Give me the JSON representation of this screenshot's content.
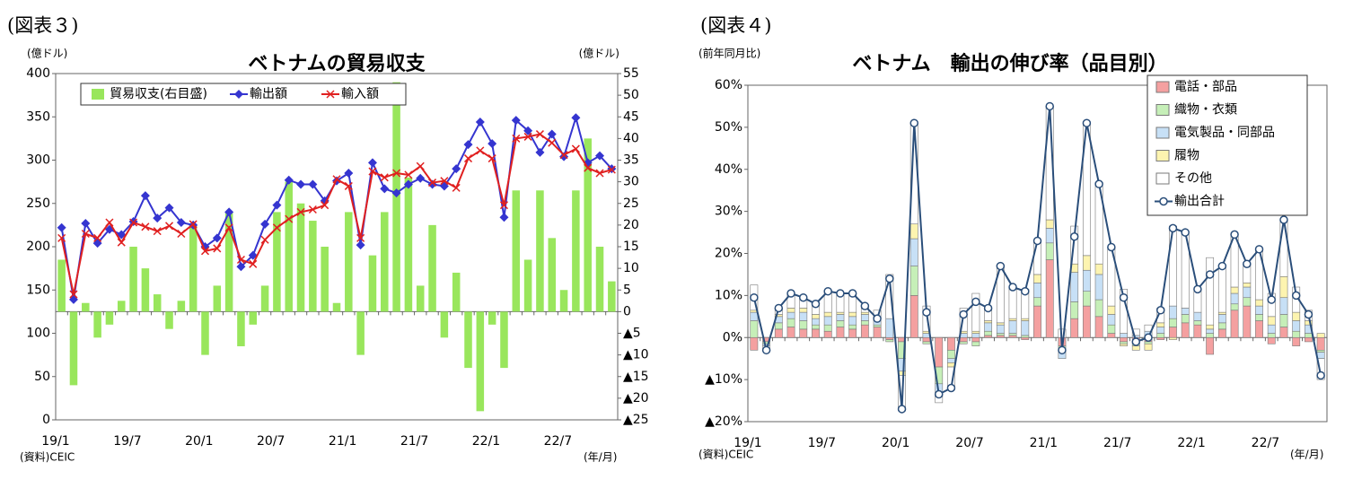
{
  "chart_data": [
    {
      "type": "combo",
      "figure_label": "(図表３)",
      "title": "ベトナムの貿易収支",
      "y_label": "(億ドル)",
      "y2_label": "(億ドル)",
      "source": "(資料)CEIC",
      "x_label": "(年/月)",
      "legend": "top-left",
      "grid": false,
      "categories": [
        "19/1",
        null,
        null,
        null,
        null,
        null,
        "19/7",
        null,
        null,
        null,
        null,
        null,
        "20/1",
        null,
        null,
        null,
        null,
        null,
        "20/7",
        null,
        null,
        null,
        null,
        null,
        "21/1",
        null,
        null,
        null,
        null,
        null,
        "21/7",
        null,
        null,
        null,
        null,
        null,
        "22/1",
        null,
        null,
        null,
        null,
        null,
        "22/7",
        null,
        null,
        null,
        null
      ],
      "ylim": [
        0,
        400
      ],
      "yticks": [
        0,
        50,
        100,
        150,
        200,
        250,
        300,
        350,
        400
      ],
      "y2lim": [
        -25,
        55
      ],
      "y2ticks": [
        {
          "value": -25,
          "label": "▲25"
        },
        {
          "value": -20,
          "label": "▲20"
        },
        {
          "value": -15,
          "label": "▲15"
        },
        {
          "value": -10,
          "label": "▲10"
        },
        {
          "value": -5,
          "label": "▲5"
        },
        0,
        5,
        10,
        15,
        20,
        25,
        30,
        35,
        40,
        45,
        50,
        55
      ],
      "series": [
        {
          "name": "貿易収支(右目盛)",
          "kind": "bar",
          "axis": "y2",
          "color": "#99e65c",
          "values": [
            12,
            -17,
            2,
            -6,
            -3,
            2.5,
            15,
            10,
            4,
            -4,
            2.5,
            20,
            -10,
            6,
            23,
            -8,
            -3,
            6,
            23,
            30,
            25,
            21,
            15,
            2,
            23,
            -10,
            13,
            23,
            53,
            31,
            6,
            20,
            -6,
            9,
            -13,
            -23,
            -3,
            -13,
            28,
            12,
            28,
            17,
            5,
            28,
            40,
            15,
            7
          ]
        },
        {
          "name": "輸出額",
          "kind": "line",
          "marker": "diamond",
          "color": "#3535d0",
          "values": [
            222,
            139,
            227,
            204,
            220,
            214,
            229,
            259,
            233,
            245,
            228,
            225,
            200,
            210,
            240,
            177,
            190,
            226,
            248,
            277,
            272,
            272,
            253,
            276,
            285,
            202,
            297,
            267,
            262,
            272,
            279,
            272,
            270,
            290,
            318,
            344,
            319,
            234,
            346,
            334,
            309,
            330,
            304,
            349,
            297,
            305,
            290
          ]
        },
        {
          "name": "輸入額",
          "kind": "line",
          "marker": "x",
          "color": "#e02020",
          "values": [
            210,
            145,
            215,
            210,
            228,
            205,
            228,
            223,
            218,
            224,
            215,
            226,
            195,
            198,
            222,
            185,
            180,
            208,
            222,
            232,
            240,
            243,
            248,
            278,
            270,
            210,
            287,
            280,
            285,
            283,
            293,
            274,
            276,
            268,
            302,
            311,
            302,
            248,
            325,
            327,
            330,
            320,
            306,
            313,
            291,
            285,
            289
          ]
        }
      ]
    },
    {
      "type": "stacked_bar",
      "figure_label": "(図表４)",
      "title": "ベトナム　輸出の伸び率（品目別）",
      "y_label": "(前年同月比)",
      "source": "(資料)CEIC",
      "x_label": "(年/月)",
      "legend": "top-right",
      "grid": false,
      "categories": [
        "19/1",
        null,
        null,
        null,
        null,
        null,
        "19/7",
        null,
        null,
        null,
        null,
        null,
        "20/1",
        null,
        null,
        null,
        null,
        null,
        "20/7",
        null,
        null,
        null,
        null,
        null,
        "21/1",
        null,
        null,
        null,
        null,
        null,
        "21/7",
        null,
        null,
        null,
        null,
        null,
        "22/1",
        null,
        null,
        null,
        null,
        null,
        "22/7",
        null,
        null,
        null,
        null
      ],
      "ylim": [
        -20,
        60
      ],
      "yticks": [
        {
          "value": -20,
          "label": "▲20%"
        },
        {
          "value": -10,
          "label": "▲10%"
        },
        {
          "value": 0,
          "label": "0%"
        },
        {
          "value": 10,
          "label": "10%"
        },
        {
          "value": 20,
          "label": "20%"
        },
        {
          "value": 30,
          "label": "30%"
        },
        {
          "value": 40,
          "label": "40%"
        },
        {
          "value": 50,
          "label": "50%"
        },
        {
          "value": 60,
          "label": "60%"
        }
      ],
      "series": [
        {
          "name": "電話・部品",
          "kind": "bar",
          "color": "#f4a0a0",
          "values": [
            -3,
            -1,
            2,
            2.5,
            2,
            2,
            1.5,
            2.5,
            2,
            3,
            2.5,
            -0.5,
            -1,
            10,
            -1,
            -7,
            -3,
            -1,
            -1,
            0.5,
            0.5,
            0.5,
            -0.5,
            7.5,
            18.5,
            -2,
            4.5,
            7.5,
            5,
            1,
            -1,
            -1,
            -1,
            -0.5,
            2.5,
            3.5,
            3,
            -4,
            2,
            6.5,
            7.5,
            4,
            -1.5,
            2.5,
            -2,
            -1,
            -3
          ]
        },
        {
          "name": "織物・衣類",
          "kind": "bar",
          "color": "#c6efb8",
          "values": [
            4,
            -0.5,
            1.5,
            2,
            2,
            1,
            1.5,
            1.5,
            1,
            1,
            0.5,
            -0.5,
            -4,
            7,
            -0.5,
            -4,
            -2,
            -0.5,
            -1,
            1,
            0.5,
            0.5,
            0.5,
            2,
            4,
            -1,
            4,
            3.5,
            4,
            2,
            -0.5,
            -1,
            -0.5,
            1,
            2,
            2,
            1,
            1,
            1.5,
            1.5,
            2,
            1.5,
            1,
            3,
            1.5,
            1,
            -0.5
          ]
        },
        {
          "name": "電気製品・同部品",
          "kind": "bar",
          "color": "#c7e0f6",
          "values": [
            2,
            -0.5,
            1.5,
            1.5,
            2,
            1.5,
            2,
            1.5,
            2,
            1.5,
            1,
            4.5,
            -3,
            6.5,
            1,
            -2,
            -1,
            1,
            1,
            2,
            2,
            3,
            3.5,
            3.5,
            3.5,
            -2,
            7,
            5,
            6,
            2.5,
            1,
            0.5,
            1.5,
            1.5,
            3,
            1.5,
            2,
            1,
            2,
            2.5,
            2.5,
            2,
            2,
            4,
            2.5,
            2,
            -1.5
          ]
        },
        {
          "name": "履物",
          "kind": "bar",
          "color": "#fdf4b0",
          "values": [
            0.5,
            0,
            0.5,
            1,
            1,
            1,
            1,
            0.5,
            1,
            0.5,
            0.5,
            0,
            -1,
            3.5,
            0.5,
            -1,
            -1,
            0.5,
            0.5,
            0.5,
            0.5,
            0.5,
            0.5,
            2,
            2,
            0,
            2,
            3.5,
            2.5,
            2,
            -0.5,
            -1,
            -1.5,
            1,
            -0.5,
            0,
            0,
            1,
            0.5,
            1.5,
            1,
            1.5,
            2,
            5,
            2,
            1,
            1
          ]
        },
        {
          "name": "その他",
          "kind": "bar",
          "color": "#ffffff",
          "values": [
            6,
            -1,
            1.5,
            3.5,
            2.5,
            2.5,
            5,
            4.5,
            4.5,
            1.5,
            2,
            10.5,
            -8,
            24,
            6,
            -1.5,
            -5,
            5.5,
            9,
            3,
            13.5,
            7.5,
            7,
            8,
            27,
            2,
            9,
            31.5,
            19,
            14,
            10.5,
            1.5,
            1.5,
            3.5,
            19,
            18,
            5.5,
            16,
            11,
            12.5,
            4.5,
            12,
            5.5,
            13.5,
            6,
            2.5,
            -5
          ]
        },
        {
          "name": "輸出合計",
          "kind": "line",
          "marker": "circle",
          "color": "#2a4e7a",
          "values": [
            9.5,
            -3,
            7,
            10.5,
            9.5,
            8,
            11,
            10.5,
            10.5,
            7.5,
            4.5,
            14,
            -17,
            51,
            6,
            -13.5,
            -12,
            5.5,
            8.5,
            7,
            17,
            12,
            11,
            23,
            55,
            -3,
            24,
            51,
            36.5,
            21.5,
            9.5,
            -1,
            0,
            6.5,
            26,
            25,
            11.5,
            15,
            17,
            24.5,
            17.5,
            21,
            9,
            28,
            10,
            5.5,
            -9
          ]
        }
      ]
    }
  ]
}
